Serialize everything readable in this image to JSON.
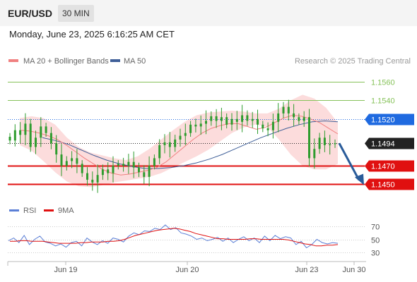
{
  "header": {
    "symbol": "EUR/USD",
    "timeframe": "30 MIN",
    "timestamp": "Monday, June 23, 2025 6:16:25 AM CET"
  },
  "legend": {
    "ma20_bb": "MA 20 + Bollinger Bands",
    "ma50": "MA 50",
    "rsi": "RSI",
    "rsi_ma": "9MA"
  },
  "credit": "Research © 2025 Trading Central",
  "colors": {
    "candle": "#2e9c2e",
    "resistance": "#86c25a",
    "support": "#e01010",
    "pivot": "#1f6ae0",
    "current": "#222222",
    "ma20": "#f08080",
    "ma50": "#3f5f98",
    "bands_fill": "#fbd6d6",
    "rsi": "#5b7fd6",
    "rsi_ma": "#e01010",
    "arrow": "#2a5c9a"
  },
  "chart_data": [
    {
      "type": "candlestick",
      "instrument": "EUR/USD",
      "interval": "30 min",
      "y_range": [
        1.1436,
        1.1572
      ],
      "x_ticks": [
        "Jun 19",
        "Jun 20",
        "Jun 23",
        "Jun 30"
      ],
      "current_price": 1.1494,
      "forecast": {
        "from": 1.1494,
        "to": 1.145,
        "direction": "down"
      },
      "levels": [
        {
          "label": "1.1560",
          "value": 1.156,
          "kind": "resistance"
        },
        {
          "label": "1.1540",
          "value": 1.154,
          "kind": "resistance"
        },
        {
          "label": "1.1520",
          "value": 1.152,
          "kind": "pivot"
        },
        {
          "label": "1.1494",
          "value": 1.1494,
          "kind": "current"
        },
        {
          "label": "1.1470",
          "value": 1.147,
          "kind": "support"
        },
        {
          "label": "1.1450",
          "value": 1.145,
          "kind": "support"
        }
      ],
      "price_path": [
        1.1497,
        1.1508,
        1.1503,
        1.1515,
        1.149,
        1.15,
        1.1512,
        1.1505,
        1.1494,
        1.1482,
        1.147,
        1.1475,
        1.1478,
        1.1472,
        1.1462,
        1.1455,
        1.1452,
        1.146,
        1.1466,
        1.1462,
        1.147,
        1.1472,
        1.147,
        1.1474,
        1.1468,
        1.1463,
        1.1458,
        1.147,
        1.1478,
        1.1492,
        1.1495,
        1.149,
        1.1498,
        1.1502,
        1.1505,
        1.1514,
        1.1512,
        1.1515,
        1.1518,
        1.1523,
        1.1518,
        1.1522,
        1.1514,
        1.152,
        1.1517,
        1.1524,
        1.1518,
        1.152,
        1.1514,
        1.151,
        1.1508,
        1.1517,
        1.1526,
        1.1533,
        1.1526,
        1.1522,
        1.1518,
        1.1522,
        1.1478,
        1.1488,
        1.15,
        1.1492,
        1.1493,
        1.1494
      ],
      "ma20": [
        1.1508,
        1.1507,
        1.1505,
        1.1502,
        1.1498,
        1.1492,
        1.1485,
        1.1478,
        1.1472,
        1.1466,
        1.1462,
        1.146,
        1.1461,
        1.1463,
        1.1465,
        1.1468,
        1.1474,
        1.1482,
        1.149,
        1.1498,
        1.1505,
        1.151,
        1.1513,
        1.1515,
        1.1515,
        1.1512,
        1.1509,
        1.1511,
        1.1516,
        1.1521,
        1.1524,
        1.1523,
        1.152,
        1.1516,
        1.151,
        1.1504
      ],
      "ma50": [
        1.15,
        1.1497,
        1.1493,
        1.1487,
        1.1481,
        1.1476,
        1.1472,
        1.1469,
        1.1467,
        1.1467,
        1.1468,
        1.147,
        1.1473,
        1.1477,
        1.1482,
        1.1488,
        1.1494,
        1.15,
        1.1505,
        1.151,
        1.1514,
        1.1517,
        1.1518,
        1.1517
      ],
      "bb_upper": [
        1.1521,
        1.1523,
        1.1521,
        1.1514,
        1.15,
        1.149,
        1.1484,
        1.1481,
        1.1478,
        1.1476,
        1.148,
        1.1488,
        1.1498,
        1.1508,
        1.1517,
        1.1524,
        1.1527,
        1.1528,
        1.1529,
        1.1528,
        1.1526,
        1.1526,
        1.1531,
        1.154,
        1.1546,
        1.1542,
        1.1532,
        1.1516
      ],
      "bb_lower": [
        1.1492,
        1.1486,
        1.1475,
        1.1463,
        1.1453,
        1.1448,
        1.1447,
        1.1449,
        1.1452,
        1.1454,
        1.1456,
        1.1458,
        1.1462,
        1.1468,
        1.1474,
        1.148,
        1.1487,
        1.1496,
        1.1505,
        1.1511,
        1.1514,
        1.1512,
        1.1498,
        1.1482,
        1.147,
        1.1466,
        1.1466,
        1.1472
      ]
    },
    {
      "type": "line",
      "title": "RSI",
      "y_ticks": [
        70,
        50,
        30
      ],
      "series": [
        {
          "name": "RSI",
          "values": [
            48,
            52,
            45,
            56,
            42,
            50,
            55,
            46,
            44,
            40,
            43,
            38,
            45,
            47,
            40,
            52,
            46,
            42,
            48,
            44,
            52,
            50,
            46,
            55,
            60,
            57,
            63,
            62,
            67,
            65,
            72,
            65,
            68,
            60,
            58,
            55,
            50,
            52,
            48,
            50,
            53,
            47,
            52,
            45,
            50,
            54,
            48,
            52,
            45,
            55,
            48,
            56,
            51,
            54,
            52,
            42,
            47,
            37,
            42,
            50,
            45,
            43,
            45,
            44
          ]
        },
        {
          "name": "9MA",
          "values": [
            47,
            47,
            48,
            48,
            47,
            47,
            47,
            46,
            45,
            44,
            44,
            44,
            44,
            45,
            45,
            46,
            46,
            46,
            47,
            47,
            48,
            50,
            53,
            56,
            58,
            60,
            62,
            64,
            65,
            66,
            67,
            66,
            64,
            62,
            59,
            57,
            55,
            53,
            51,
            51,
            50,
            50,
            50,
            50,
            51,
            51,
            50,
            50,
            50,
            50,
            50,
            49,
            47,
            45,
            43,
            42,
            40,
            40,
            41,
            41,
            42
          ]
        }
      ]
    }
  ]
}
